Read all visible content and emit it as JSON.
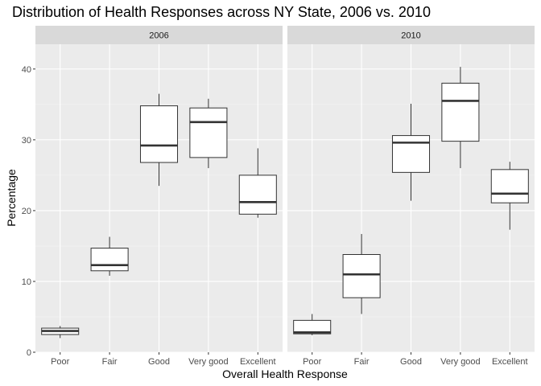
{
  "chart_data": {
    "type": "boxplot",
    "title": "Distribution of Health Responses across NY State, 2006 vs. 2010",
    "xlabel": "Overall Health Response",
    "ylabel": "Percentage",
    "categories": [
      "Poor",
      "Fair",
      "Good",
      "Very good",
      "Excellent"
    ],
    "ylim": [
      0,
      43.5
    ],
    "yticks": [
      0,
      10,
      20,
      30,
      40
    ],
    "grid": true,
    "facets": [
      {
        "label": "2006",
        "boxes": [
          {
            "category": "Poor",
            "min": 2.0,
            "q1": 2.5,
            "median": 3.0,
            "q3": 3.4,
            "max": 3.7
          },
          {
            "category": "Fair",
            "min": 10.8,
            "q1": 11.5,
            "median": 12.3,
            "q3": 14.7,
            "max": 16.3
          },
          {
            "category": "Good",
            "min": 23.5,
            "q1": 26.8,
            "median": 29.2,
            "q3": 34.8,
            "max": 36.5
          },
          {
            "category": "Very good",
            "min": 26.0,
            "q1": 27.5,
            "median": 32.5,
            "q3": 34.5,
            "max": 35.8
          },
          {
            "category": "Excellent",
            "min": 19.0,
            "q1": 19.5,
            "median": 21.2,
            "q3": 25.0,
            "max": 28.8
          }
        ]
      },
      {
        "label": "2010",
        "boxes": [
          {
            "category": "Poor",
            "min": 2.4,
            "q1": 2.6,
            "median": 2.8,
            "q3": 4.5,
            "max": 5.4
          },
          {
            "category": "Fair",
            "min": 5.4,
            "q1": 7.7,
            "median": 11.0,
            "q3": 13.8,
            "max": 16.7
          },
          {
            "category": "Good",
            "min": 21.4,
            "q1": 25.4,
            "median": 29.6,
            "q3": 30.6,
            "max": 35.1
          },
          {
            "category": "Very good",
            "min": 26.0,
            "q1": 29.8,
            "median": 35.5,
            "q3": 38.0,
            "max": 40.3
          },
          {
            "category": "Excellent",
            "min": 17.3,
            "q1": 21.1,
            "median": 22.4,
            "q3": 25.8,
            "max": 26.9
          }
        ]
      }
    ]
  }
}
